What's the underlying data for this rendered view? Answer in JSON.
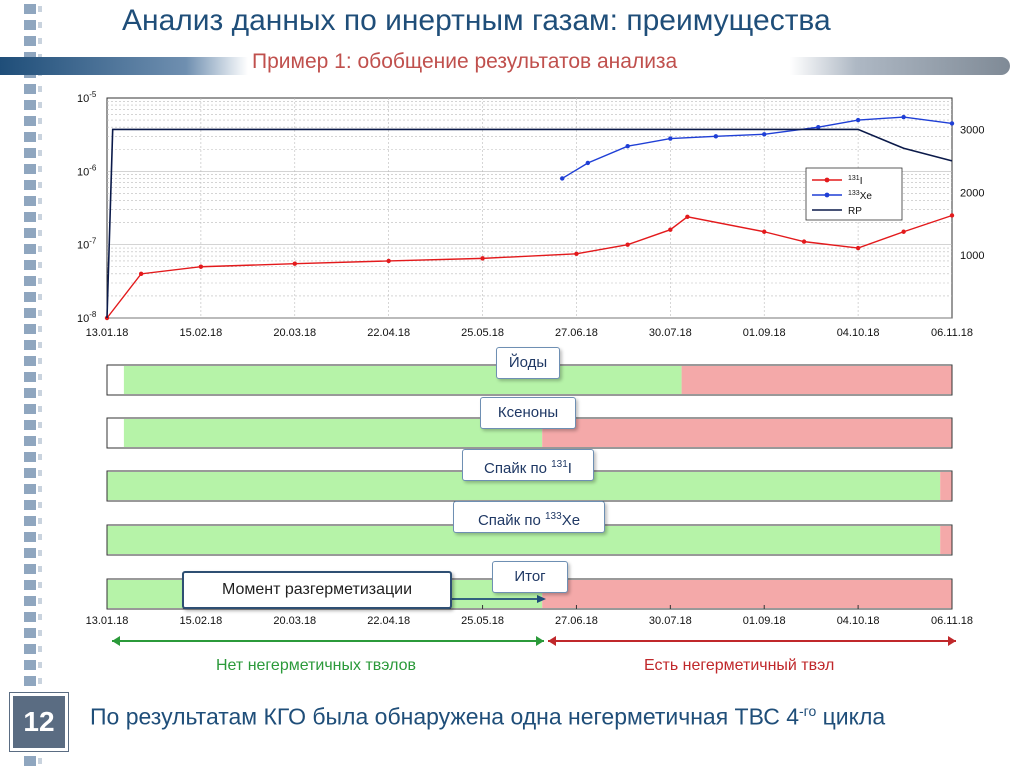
{
  "title": "Анализ данных по инертным газам: преимущества",
  "subtitle": "Пример 1: обобщение результатов анализа",
  "slide_number": "12",
  "chart": {
    "y_left_ticks": [
      {
        "base": "10",
        "exp": "-5"
      },
      {
        "base": "10",
        "exp": "-6"
      },
      {
        "base": "10",
        "exp": "-7"
      },
      {
        "base": "10",
        "exp": "-8"
      }
    ],
    "y_right_ticks": [
      "3000",
      "2000",
      "1000"
    ],
    "x_ticks": [
      "13.01.18",
      "15.02.18",
      "20.03.18",
      "22.04.18",
      "25.05.18",
      "27.06.18",
      "30.07.18",
      "01.09.18",
      "04.10.18",
      "06.11.18"
    ],
    "legend": [
      {
        "sup": "131",
        "text": "I",
        "color": "#e31a1c"
      },
      {
        "sup": "133",
        "text": "Xe",
        "color": "#1f3fd6"
      },
      {
        "sup": "",
        "text": "RP",
        "color": "#0b1a4a"
      }
    ]
  },
  "chart_data": {
    "type": "line",
    "x_labels": [
      "13.01.18",
      "15.02.18",
      "20.03.18",
      "22.04.18",
      "25.05.18",
      "27.06.18",
      "30.07.18",
      "01.09.18",
      "04.10.18",
      "06.11.18"
    ],
    "y_left_scale": "log",
    "y_left_range": [
      "1e-8",
      "1e-5"
    ],
    "y_right_range": [
      0,
      3500
    ],
    "series": [
      {
        "name": "131I",
        "axis": "left",
        "x": [
          "13.01.18",
          "25.01.18",
          "15.02.18",
          "20.03.18",
          "22.04.18",
          "25.05.18",
          "27.06.18",
          "15.07.18",
          "30.07.18",
          "05.08.18",
          "01.09.18",
          "15.09.18",
          "04.10.18",
          "20.10.18",
          "06.11.18"
        ],
        "y": [
          1e-08,
          4e-08,
          5e-08,
          5.5e-08,
          6e-08,
          6.5e-08,
          7.5e-08,
          1e-07,
          1.6e-07,
          2.4e-07,
          1.5e-07,
          1.1e-07,
          9e-08,
          1.5e-07,
          2.5e-07
        ]
      },
      {
        "name": "133Xe",
        "axis": "left",
        "x": [
          "22.06.18",
          "01.07.18",
          "15.07.18",
          "30.07.18",
          "15.08.18",
          "01.09.18",
          "20.09.18",
          "04.10.18",
          "20.10.18",
          "06.11.18"
        ],
        "y": [
          8e-07,
          1.3e-06,
          2.2e-06,
          2.8e-06,
          3e-06,
          3.2e-06,
          4e-06,
          5e-06,
          5.5e-06,
          4.5e-06
        ]
      },
      {
        "name": "RP",
        "axis": "right",
        "x": [
          "13.01.18",
          "15.01.18",
          "01.02.18",
          "15.02.18",
          "20.03.18",
          "22.04.18",
          "25.05.18",
          "27.06.18",
          "30.07.18",
          "01.09.18",
          "04.10.18",
          "20.10.18",
          "06.11.18"
        ],
        "y": [
          0,
          3000,
          3000,
          3000,
          3000,
          3000,
          3000,
          3000,
          3000,
          3000,
          3000,
          2700,
          2500
        ]
      }
    ]
  },
  "timeline": {
    "x_ticks": [
      "13.01.18",
      "15.02.18",
      "20.03.18",
      "22.04.18",
      "25.05.18",
      "27.06.18",
      "30.07.18",
      "01.09.18",
      "04.10.18",
      "06.11.18"
    ],
    "rows": [
      {
        "label": "Йоды",
        "label_sup": "",
        "green_start": 0.02,
        "green_end": 0.68
      },
      {
        "label": "Ксеноны",
        "label_sup": "",
        "green_start": 0.02,
        "green_end": 0.515
      },
      {
        "label": "Спайк по ",
        "label_sup": "131",
        "label_tail": "I",
        "green_start": 0.0,
        "green_end": 0.986
      },
      {
        "label": "Спайк по ",
        "label_sup": "133",
        "label_tail": "Xe",
        "green_start": 0.0,
        "green_end": 0.986
      },
      {
        "label": "Итог",
        "label_sup": "",
        "green_start": 0.0,
        "green_end": 0.515
      }
    ],
    "callout": "Момент разгерметизации"
  },
  "no_leak_label": "Нет негерметичных твэлов",
  "leak_label": "Есть негерметичный твэл",
  "bottom_text": {
    "main": "По результатам КГО была обнаружена одна негерметичная ТВС 4",
    "sup": "-го",
    "tail": " цикла"
  },
  "colors": {
    "green": "#b6f3a8",
    "red": "#f4a9a9",
    "title": "#1f4e79",
    "subtitle": "#c0504d",
    "i131": "#e31a1c",
    "xe133": "#1f3fd6",
    "rp": "#0b1a4a",
    "arrow_green": "#2b9a3a",
    "arrow_red": "#c0282b"
  }
}
